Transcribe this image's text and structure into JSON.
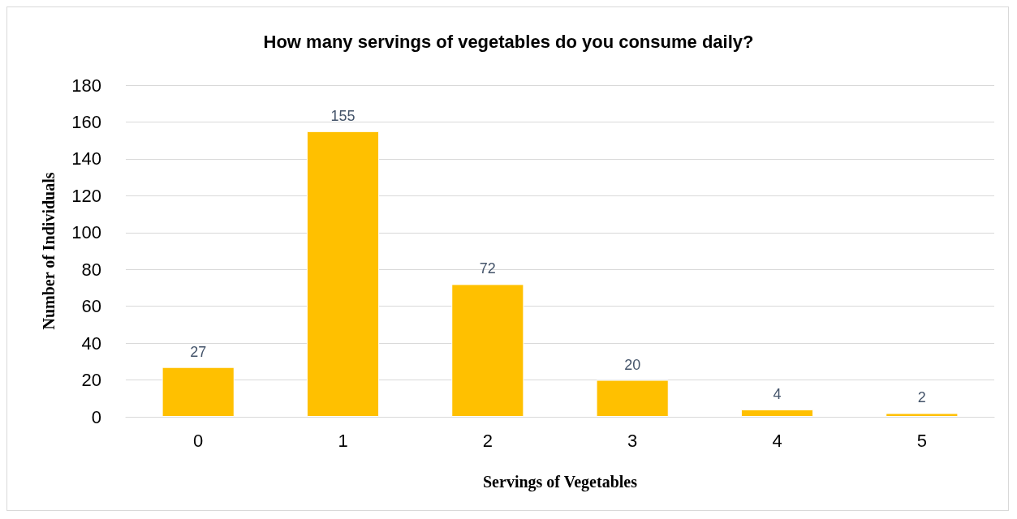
{
  "chart_data": {
    "type": "bar",
    "title": "How many servings of vegetables do you consume daily?",
    "xlabel": "Servings of Vegetables",
    "ylabel": "Number of Individuals",
    "categories": [
      "0",
      "1",
      "2",
      "3",
      "4",
      "5"
    ],
    "values": [
      27,
      155,
      72,
      20,
      4,
      2
    ],
    "color": "#ffc000",
    "ylim": [
      0,
      180
    ],
    "yticks": [
      0,
      20,
      40,
      60,
      80,
      100,
      120,
      140,
      160,
      180
    ],
    "grid": "y",
    "data_labels": true
  }
}
